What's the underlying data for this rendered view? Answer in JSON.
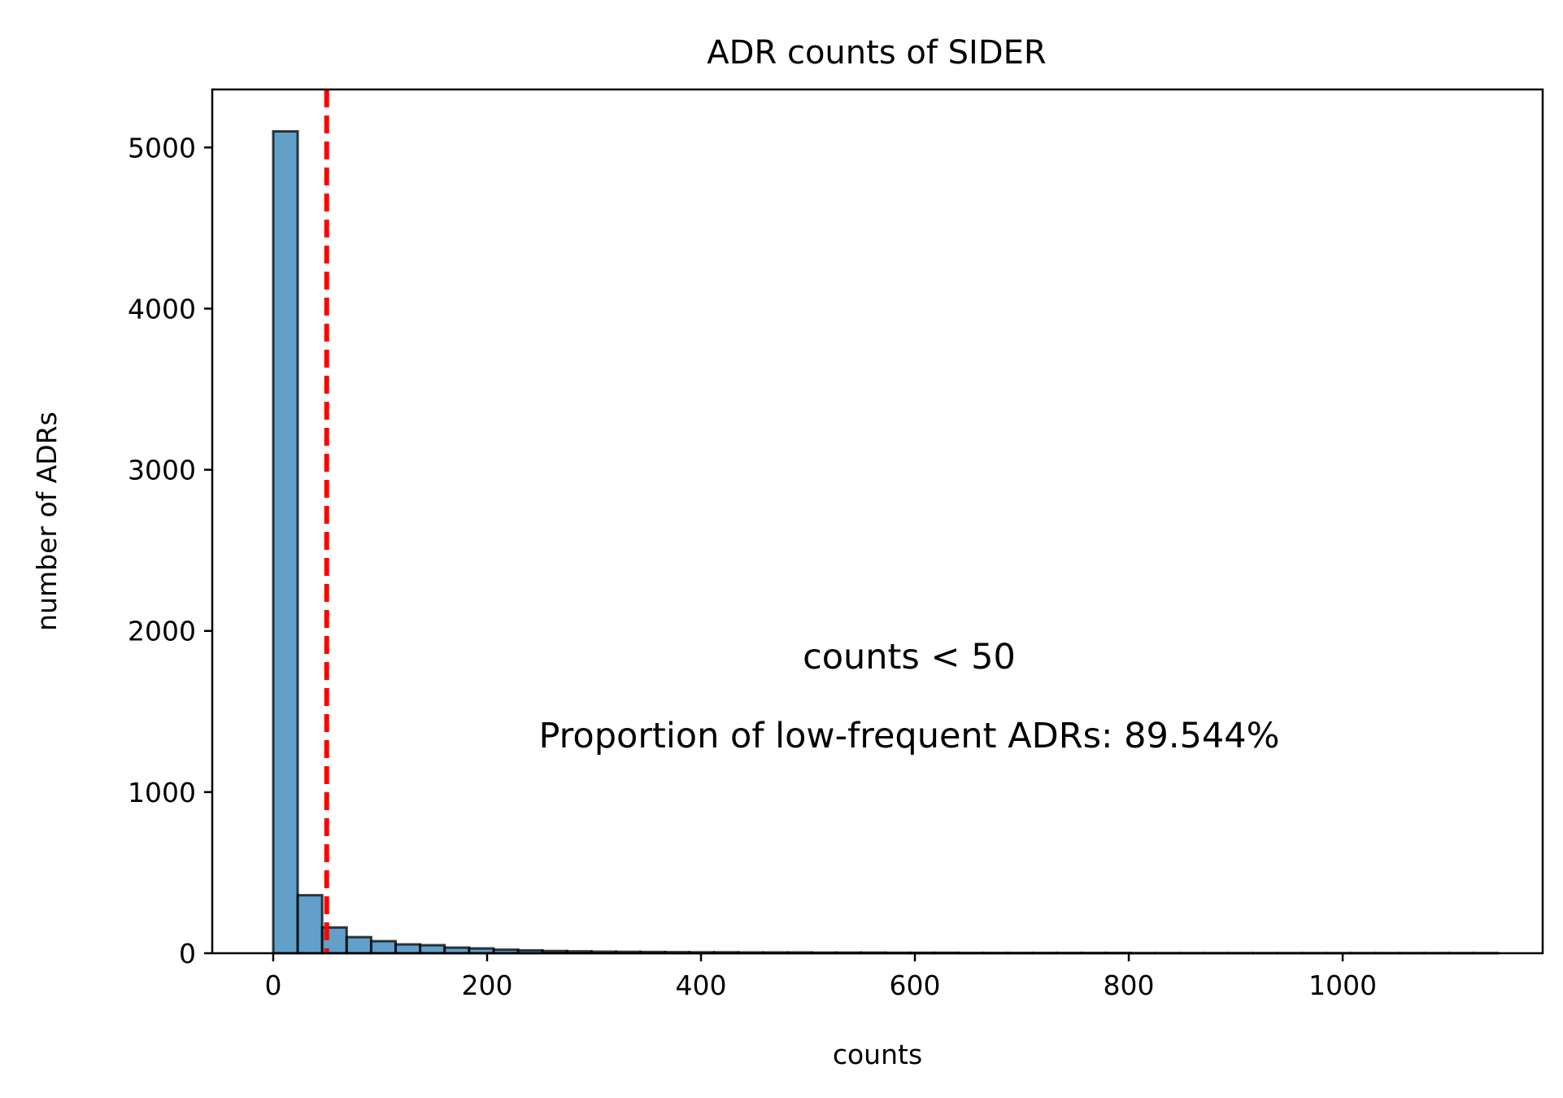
{
  "chart_data": {
    "type": "bar",
    "title": "ADR counts of SIDER",
    "xlabel": "counts",
    "ylabel": "number of ADRs",
    "xlim": [
      -57,
      1187
    ],
    "ylim": [
      0,
      5360
    ],
    "xticks": [
      0,
      200,
      400,
      600,
      800,
      1000
    ],
    "yticks": [
      0,
      1000,
      2000,
      3000,
      4000,
      5000
    ],
    "bin_width": 22.9,
    "bin_starts": [
      0,
      22.9,
      45.8,
      68.7,
      91.6,
      114.5,
      137.4,
      160.3,
      183.2,
      206.1,
      229.0,
      251.9,
      274.8,
      297.7,
      320.6,
      343.5,
      366.4,
      389.3,
      412.2,
      435.1,
      458.0,
      480.9,
      503.8,
      526.7,
      549.6,
      572.5,
      595.4,
      618.3,
      641.2,
      664.1,
      687.0,
      709.9,
      732.8,
      755.7,
      778.6,
      801.5,
      824.4,
      847.3,
      870.2,
      893.1,
      916.0,
      938.9,
      961.8,
      984.7,
      1007.6,
      1030.5,
      1053.4,
      1076.3,
      1099.2,
      1122.1
    ],
    "values": [
      5100,
      360,
      160,
      100,
      75,
      55,
      50,
      35,
      30,
      22,
      18,
      14,
      12,
      10,
      9,
      8,
      7,
      6,
      6,
      5,
      5,
      5,
      4,
      4,
      4,
      3,
      3,
      3,
      2,
      2,
      2,
      2,
      2,
      2,
      2,
      1,
      1,
      1,
      1,
      1,
      1,
      1,
      1,
      1,
      1,
      1,
      1,
      1,
      1,
      1
    ],
    "bar_color": "#1f77b4",
    "bar_alpha": 0.7,
    "edge_color": "#000000",
    "threshold": {
      "x": 50,
      "color": "#ff0000",
      "style": "dashed"
    },
    "annotations": [
      "counts < 50",
      "Proportion of low-frequent ADRs: 89.544%"
    ],
    "grid": false,
    "legend": "none"
  }
}
